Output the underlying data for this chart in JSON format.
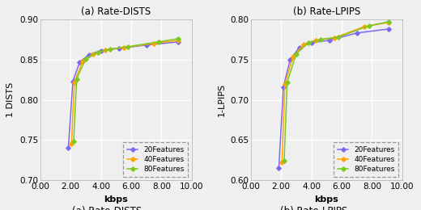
{
  "plot1": {
    "title": "(a) Rate-DISTS",
    "ylabel": "1 DISTS",
    "xlabel": "kbps",
    "xlim": [
      0.0,
      10.0
    ],
    "ylim": [
      0.7,
      0.9
    ],
    "xticks": [
      0.0,
      2.0,
      4.0,
      6.0,
      8.0,
      10.0
    ],
    "yticks": [
      0.7,
      0.75,
      0.8,
      0.85,
      0.9
    ],
    "series": [
      {
        "label": "20Features",
        "color": "#7b68ee",
        "x": [
          1.85,
          2.15,
          2.6,
          3.2,
          4.0,
          5.2,
          7.0,
          9.1
        ],
        "y": [
          0.74,
          0.823,
          0.847,
          0.856,
          0.861,
          0.864,
          0.868,
          0.872
        ]
      },
      {
        "label": "40Features",
        "color": "#ffa500",
        "x": [
          2.05,
          2.25,
          2.8,
          3.5,
          4.3,
          5.5,
          7.5,
          9.1
        ],
        "y": [
          0.745,
          0.822,
          0.848,
          0.857,
          0.862,
          0.865,
          0.87,
          0.874
        ]
      },
      {
        "label": "80Features",
        "color": "#7ec820",
        "x": [
          2.2,
          2.4,
          3.0,
          3.8,
          4.6,
          5.8,
          7.8,
          9.1
        ],
        "y": [
          0.748,
          0.826,
          0.851,
          0.859,
          0.863,
          0.866,
          0.872,
          0.876
        ]
      }
    ]
  },
  "plot2": {
    "title": "(b) Rate-LPIPS",
    "ylabel": "1-LPIPS",
    "xlabel": "kbps",
    "xlim": [
      0.0,
      10.0
    ],
    "ylim": [
      0.6,
      0.8
    ],
    "xticks": [
      0.0,
      2.0,
      4.0,
      6.0,
      8.0,
      10.0
    ],
    "yticks": [
      0.6,
      0.65,
      0.7,
      0.75,
      0.8
    ],
    "series": [
      {
        "label": "20Features",
        "color": "#7b68ee",
        "x": [
          1.85,
          2.15,
          2.6,
          3.2,
          4.0,
          5.2,
          7.0,
          9.1
        ],
        "y": [
          0.615,
          0.716,
          0.75,
          0.765,
          0.771,
          0.774,
          0.783,
          0.788
        ]
      },
      {
        "label": "40Features",
        "color": "#ffa500",
        "x": [
          2.05,
          2.25,
          2.8,
          3.5,
          4.3,
          5.5,
          7.5,
          9.1
        ],
        "y": [
          0.622,
          0.72,
          0.754,
          0.769,
          0.774,
          0.777,
          0.791,
          0.796
        ]
      },
      {
        "label": "80Features",
        "color": "#7ec820",
        "x": [
          2.2,
          2.4,
          3.0,
          3.8,
          4.6,
          5.8,
          7.8,
          9.1
        ],
        "y": [
          0.624,
          0.722,
          0.757,
          0.771,
          0.775,
          0.778,
          0.792,
          0.797
        ]
      }
    ]
  },
  "plot_bg_color": "#efefef",
  "fig_bg_color": "#f0f0f0",
  "grid_color": "#ffffff",
  "legend_fontsize": 6.5,
  "axis_label_fontsize": 8,
  "tick_fontsize": 7.5,
  "title_fontsize": 8.5,
  "marker": "D",
  "markersize": 2.8,
  "linewidth": 1.1
}
